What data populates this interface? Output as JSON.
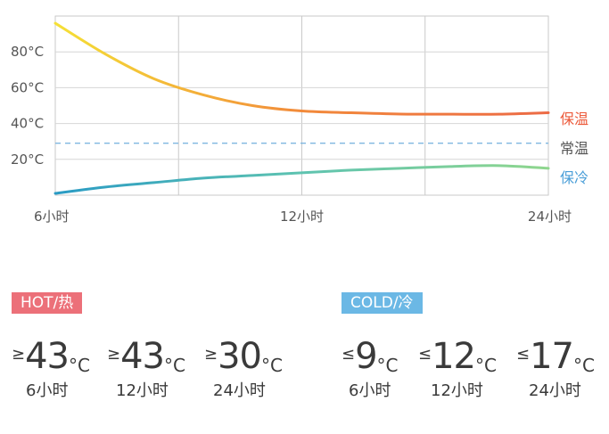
{
  "chart_data": {
    "type": "line",
    "title": "",
    "xlabel": "",
    "ylabel": "",
    "x_ticks": [
      "6小时",
      "12小时",
      "24小时"
    ],
    "y_ticks": [
      "80°C",
      "60°C",
      "40°C",
      "20°C"
    ],
    "ylim": [
      0,
      100
    ],
    "grid": true,
    "series": [
      {
        "name": "保温",
        "color": "#f08a3c",
        "gradient": [
          "#f5e036",
          "#f28a3a",
          "#ec6a45"
        ],
        "x": [
          0,
          0.1,
          0.2,
          0.3,
          0.4,
          0.5,
          0.6,
          0.7,
          0.8,
          0.9,
          1.0
        ],
        "y": [
          96,
          79,
          65,
          56,
          50,
          47,
          46,
          45.3,
          45.2,
          45.2,
          46
        ]
      },
      {
        "name": "常温",
        "color": "#7fb6e0",
        "dashed": true,
        "x": [
          0,
          1.0
        ],
        "y": [
          29,
          29
        ]
      },
      {
        "name": "保冷",
        "color": "#6bbfb8",
        "gradient": [
          "#2a9bc4",
          "#5ec3b0",
          "#8fd68d"
        ],
        "x": [
          0,
          0.1,
          0.2,
          0.3,
          0.4,
          0.5,
          0.6,
          0.7,
          0.8,
          0.9,
          1.0
        ],
        "y": [
          1,
          4.5,
          7,
          9.5,
          11,
          12.5,
          14,
          15,
          16,
          16.5,
          15
        ]
      }
    ],
    "legend": {
      "position": "right",
      "entries": [
        {
          "label": "保温",
          "color": "#ec5a3a"
        },
        {
          "label": "常温",
          "color": "#555555"
        },
        {
          "label": "保冷",
          "color": "#4a9ed8"
        }
      ]
    }
  },
  "hot": {
    "title": "HOT/热",
    "color": "#ec7079",
    "items": [
      {
        "symbol": "≥",
        "value": "43",
        "unit": "°C",
        "period": "6小时"
      },
      {
        "symbol": "≥",
        "value": "43",
        "unit": "°C",
        "period": "12小时"
      },
      {
        "symbol": "≥",
        "value": "30",
        "unit": "°C",
        "period": "24小时"
      }
    ]
  },
  "cold": {
    "title": "COLD/冷",
    "color": "#6bb8e5",
    "items": [
      {
        "symbol": "≤",
        "value": "9",
        "unit": "°C",
        "period": "6小时"
      },
      {
        "symbol": "≤",
        "value": "12",
        "unit": "°C",
        "period": "12小时"
      },
      {
        "symbol": "≤",
        "value": "17",
        "unit": "°C",
        "period": "24小时"
      }
    ]
  }
}
